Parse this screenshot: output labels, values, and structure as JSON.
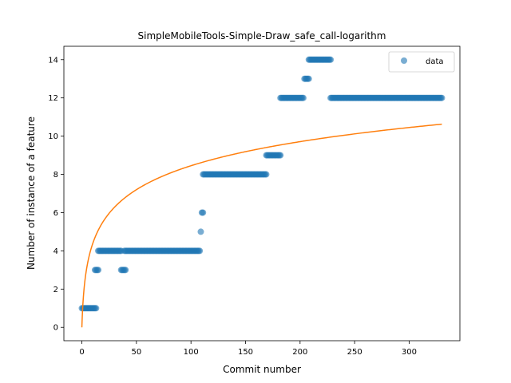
{
  "chart_data": {
    "type": "scatter",
    "title": "SimpleMobileTools-Simple-Draw_safe_call-logarithm",
    "xlabel": "Commit number",
    "ylabel": "Number of instance of a feature",
    "xlim": [
      -16.5,
      346.5
    ],
    "ylim": [
      -0.7,
      14.7
    ],
    "xticks": [
      0,
      50,
      100,
      150,
      200,
      250,
      300
    ],
    "yticks": [
      0,
      2,
      4,
      6,
      8,
      10,
      12,
      14
    ],
    "legend": {
      "position": "top-right",
      "entries": [
        "data"
      ]
    },
    "colors": {
      "scatter": "#1f77b4",
      "fit": "#ff7f0e"
    },
    "series": [
      {
        "name": "data",
        "kind": "scatter",
        "segments": [
          {
            "x_from": 0,
            "x_to": 13,
            "y": 1
          },
          {
            "x_from": 12,
            "x_to": 15,
            "y": 3
          },
          {
            "x_from": 15,
            "x_to": 36,
            "y": 4
          },
          {
            "x_from": 36,
            "x_to": 40,
            "y": 3
          },
          {
            "x_from": 39,
            "x_to": 108,
            "y": 4
          },
          {
            "x_from": 109,
            "x_to": 109,
            "y": 5
          },
          {
            "x_from": 110,
            "x_to": 111,
            "y": 6
          },
          {
            "x_from": 111,
            "x_to": 169,
            "y": 8
          },
          {
            "x_from": 169,
            "x_to": 182,
            "y": 9
          },
          {
            "x_from": 182,
            "x_to": 203,
            "y": 12
          },
          {
            "x_from": 204,
            "x_to": 208,
            "y": 13
          },
          {
            "x_from": 208,
            "x_to": 228,
            "y": 14
          },
          {
            "x_from": 228,
            "x_to": 330,
            "y": 12
          }
        ]
      },
      {
        "name": "",
        "kind": "line",
        "model": "logarithmic",
        "points": [
          [
            0,
            0
          ],
          [
            1,
            1.27
          ],
          [
            2,
            2.01
          ],
          [
            5,
            3.29
          ],
          [
            10,
            4.4
          ],
          [
            20,
            5.57
          ],
          [
            50,
            7.22
          ],
          [
            100,
            8.46
          ],
          [
            150,
            9.19
          ],
          [
            200,
            9.71
          ],
          [
            250,
            10.1
          ],
          [
            330,
            10.62
          ]
        ]
      }
    ]
  }
}
